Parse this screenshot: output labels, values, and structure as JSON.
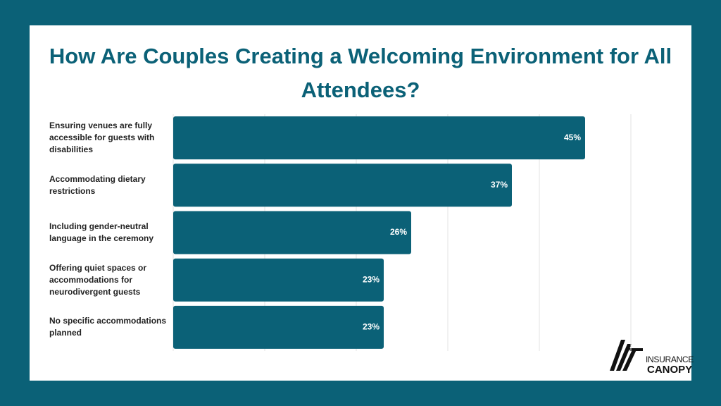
{
  "chart_data": {
    "type": "bar",
    "orientation": "horizontal",
    "title": "How Are Couples Creating a Welcoming Environment for All Attendees?",
    "categories": [
      "Ensuring venues are fully accessible for guests with disabilities",
      "Accommodating dietary restrictions",
      "Including gender-neutral language in the ceremony",
      "Offering quiet spaces or accommodations for neurodivergent guests",
      "No specific accommodations planned"
    ],
    "values": [
      45,
      37,
      26,
      23,
      23
    ],
    "value_labels": [
      "45%",
      "37%",
      "26%",
      "23%",
      "23%"
    ],
    "color": "#0b6177",
    "xlim": [
      0,
      50
    ],
    "xticks": [
      0,
      10,
      20,
      30,
      40,
      50
    ],
    "grid": true
  },
  "logo": {
    "top": "INSURANCE",
    "bottom": "CANOPY"
  }
}
